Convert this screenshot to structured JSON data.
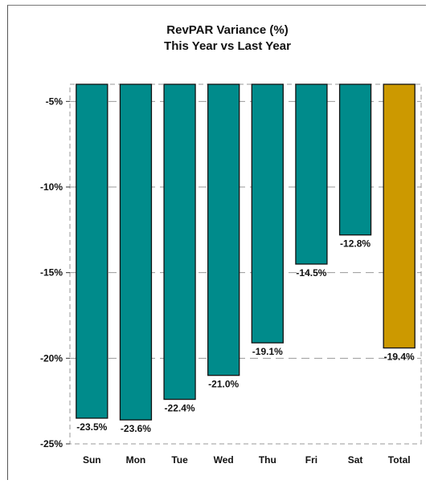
{
  "chart_data": {
    "type": "bar",
    "title": [
      "RevPAR Variance (%)",
      "This Year vs Last Year"
    ],
    "categories": [
      "Sun",
      "Mon",
      "Tue",
      "Wed",
      "Thu",
      "Fri",
      "Sat",
      "Total"
    ],
    "values": [
      -23.5,
      -23.6,
      -22.4,
      -21.0,
      -19.1,
      -14.5,
      -12.8,
      -19.4
    ],
    "data_labels": [
      "-23.5%",
      "-23.6%",
      "-22.4%",
      "-21.0%",
      "-19.1%",
      "-14.5%",
      "-12.8%",
      "-19.4%"
    ],
    "yticks": [
      -5,
      -10,
      -15,
      -20,
      -25
    ],
    "ytick_labels": [
      "-5%",
      "-10%",
      "-15%",
      "-20%",
      "-25%"
    ],
    "ylim": [
      -25,
      -4
    ],
    "grid": true,
    "colors": {
      "days": "#008B8B",
      "total": "#CC9900",
      "outline": "#111111",
      "grid": "#999999"
    },
    "xlabel": "",
    "ylabel": ""
  }
}
